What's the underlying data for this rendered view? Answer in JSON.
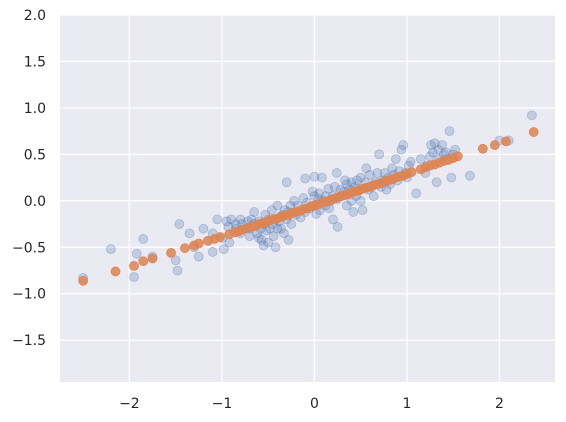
{
  "chart_data": {
    "type": "scatter",
    "title": "",
    "xlabel": "",
    "ylabel": "",
    "xlim": [
      -2.75,
      2.6
    ],
    "ylim": [
      -1.95,
      2.0
    ],
    "grid": true,
    "x_ticks": [
      -2,
      -1,
      0,
      1,
      2
    ],
    "x_tick_labels": [
      "−2",
      "−1",
      "0",
      "1",
      "2"
    ],
    "y_ticks": [
      -1.5,
      -1.0,
      -0.5,
      0.0,
      0.5,
      1.0,
      1.5,
      2.0
    ],
    "y_tick_labels": [
      "−1.5",
      "−1.0",
      "−0.5",
      "0.0",
      "0.5",
      "1.0",
      "1.5",
      "2.0"
    ],
    "colors": {
      "background": "#eaeaf2",
      "grid": "#ffffff",
      "series1": "#4c72b0",
      "series2": "#dd8452"
    },
    "series": [
      {
        "color": "#4c72b0",
        "alpha": 0.25,
        "points": [
          [
            -2.5,
            -0.83
          ],
          [
            -2.2,
            -0.52
          ],
          [
            -1.95,
            -0.82
          ],
          [
            -1.92,
            -0.57
          ],
          [
            -1.85,
            -0.41
          ],
          [
            -1.75,
            -0.6
          ],
          [
            -1.5,
            -0.64
          ],
          [
            -1.48,
            -0.75
          ],
          [
            -1.46,
            -0.25
          ],
          [
            -1.35,
            -0.35
          ],
          [
            -1.3,
            -0.5
          ],
          [
            -1.25,
            -0.6
          ],
          [
            -1.2,
            -0.3
          ],
          [
            -1.1,
            -0.35
          ],
          [
            -1.1,
            -0.55
          ],
          [
            -1.05,
            -0.2
          ],
          [
            -1.0,
            -0.4
          ],
          [
            -0.98,
            -0.52
          ],
          [
            -0.95,
            -0.22
          ],
          [
            -0.93,
            -0.28
          ],
          [
            -0.92,
            -0.45
          ],
          [
            -0.9,
            -0.2
          ],
          [
            -0.85,
            -0.25
          ],
          [
            -0.85,
            -0.3
          ],
          [
            -0.8,
            -0.2
          ],
          [
            -0.8,
            -0.35
          ],
          [
            -0.78,
            -0.25
          ],
          [
            -0.75,
            -0.3
          ],
          [
            -0.72,
            -0.22
          ],
          [
            -0.7,
            -0.3
          ],
          [
            -0.7,
            -0.38
          ],
          [
            -0.68,
            -0.2
          ],
          [
            -0.66,
            -0.25
          ],
          [
            -0.65,
            -0.12
          ],
          [
            -0.62,
            -0.35
          ],
          [
            -0.6,
            -0.22
          ],
          [
            -0.6,
            -0.4
          ],
          [
            -0.58,
            -0.3
          ],
          [
            -0.57,
            -0.42
          ],
          [
            -0.55,
            -0.25
          ],
          [
            -0.55,
            -0.48
          ],
          [
            -0.53,
            -0.15
          ],
          [
            -0.52,
            -0.32
          ],
          [
            -0.5,
            -0.45
          ],
          [
            -0.5,
            -0.2
          ],
          [
            -0.48,
            -0.3
          ],
          [
            -0.46,
            -0.1
          ],
          [
            -0.45,
            -0.25
          ],
          [
            -0.44,
            -0.38
          ],
          [
            -0.42,
            -0.2
          ],
          [
            -0.42,
            -0.5
          ],
          [
            -0.4,
            -0.3
          ],
          [
            -0.4,
            -0.05
          ],
          [
            -0.38,
            -0.22
          ],
          [
            -0.36,
            -0.3
          ],
          [
            -0.35,
            -0.15
          ],
          [
            -0.33,
            -0.35
          ],
          [
            -0.32,
            -0.1
          ],
          [
            -0.3,
            0.2
          ],
          [
            -0.3,
            -0.2
          ],
          [
            -0.28,
            -0.42
          ],
          [
            -0.28,
            -0.12
          ],
          [
            -0.26,
            -0.05
          ],
          [
            -0.25,
            -0.25
          ],
          [
            -0.22,
            0.0
          ],
          [
            -0.2,
            -0.15
          ],
          [
            -0.18,
            -0.05
          ],
          [
            -0.15,
            -0.18
          ],
          [
            -0.12,
            0.03
          ],
          [
            -0.1,
            -0.12
          ],
          [
            -0.1,
            0.24
          ],
          [
            -0.08,
            -0.02
          ],
          [
            -0.05,
            -0.08
          ],
          [
            -0.02,
            0.1
          ],
          [
            0.0,
            -0.05
          ],
          [
            0.0,
            0.05
          ],
          [
            0.0,
            0.26
          ],
          [
            0.02,
            -0.14
          ],
          [
            0.04,
            0.02
          ],
          [
            0.05,
            0.08
          ],
          [
            0.06,
            -0.1
          ],
          [
            0.08,
            0.25
          ],
          [
            0.1,
            0.0
          ],
          [
            0.12,
            0.05
          ],
          [
            0.12,
            -0.05
          ],
          [
            0.15,
            0.13
          ],
          [
            0.16,
            -0.08
          ],
          [
            0.18,
            0.0
          ],
          [
            0.2,
            0.05
          ],
          [
            0.2,
            -0.2
          ],
          [
            0.22,
            0.15
          ],
          [
            0.24,
            0.3
          ],
          [
            0.25,
            0.02
          ],
          [
            0.25,
            -0.28
          ],
          [
            0.28,
            0.12
          ],
          [
            0.3,
            0.05
          ],
          [
            0.32,
            0.1
          ],
          [
            0.33,
            0.22
          ],
          [
            0.35,
            -0.05
          ],
          [
            0.35,
            0.18
          ],
          [
            0.38,
            0.12
          ],
          [
            0.4,
            0.0
          ],
          [
            0.4,
            0.2
          ],
          [
            0.42,
            -0.12
          ],
          [
            0.44,
            0.15
          ],
          [
            0.45,
            0.05
          ],
          [
            0.46,
            0.22
          ],
          [
            0.48,
            0.12
          ],
          [
            0.5,
            0.0
          ],
          [
            0.5,
            0.25
          ],
          [
            0.52,
            -0.1
          ],
          [
            0.55,
            0.2
          ],
          [
            0.56,
            0.35
          ],
          [
            0.58,
            0.12
          ],
          [
            0.6,
            0.28
          ],
          [
            0.62,
            0.15
          ],
          [
            0.64,
            0.05
          ],
          [
            0.66,
            0.2
          ],
          [
            0.68,
            0.3
          ],
          [
            0.7,
            0.5
          ],
          [
            0.72,
            0.15
          ],
          [
            0.74,
            0.22
          ],
          [
            0.76,
            0.3
          ],
          [
            0.78,
            0.12
          ],
          [
            0.8,
            0.25
          ],
          [
            0.82,
            0.18
          ],
          [
            0.84,
            0.35
          ],
          [
            0.86,
            0.28
          ],
          [
            0.88,
            0.45
          ],
          [
            0.9,
            0.22
          ],
          [
            0.92,
            0.32
          ],
          [
            0.94,
            0.55
          ],
          [
            0.96,
            0.6
          ],
          [
            0.98,
            0.3
          ],
          [
            1.0,
            0.25
          ],
          [
            1.02,
            0.38
          ],
          [
            1.04,
            0.42
          ],
          [
            1.1,
            0.08
          ],
          [
            1.15,
            0.45
          ],
          [
            1.2,
            0.3
          ],
          [
            1.22,
            0.38
          ],
          [
            1.25,
            0.48
          ],
          [
            1.26,
            0.6
          ],
          [
            1.28,
            0.52
          ],
          [
            1.3,
            0.62
          ],
          [
            1.32,
            0.2
          ],
          [
            1.34,
            0.55
          ],
          [
            1.35,
            0.45
          ],
          [
            1.38,
            0.6
          ],
          [
            1.4,
            0.5
          ],
          [
            1.42,
            0.52
          ],
          [
            1.44,
            0.45
          ],
          [
            1.46,
            0.75
          ],
          [
            1.48,
            0.25
          ],
          [
            1.5,
            0.5
          ],
          [
            1.52,
            0.55
          ],
          [
            1.68,
            0.27
          ],
          [
            2.0,
            0.65
          ],
          [
            2.1,
            0.65
          ],
          [
            2.35,
            0.92
          ]
        ]
      },
      {
        "color": "#dd8452",
        "alpha": 0.85,
        "points": [
          [
            -2.5,
            -0.86
          ],
          [
            -2.15,
            -0.76
          ],
          [
            -1.95,
            -0.7
          ],
          [
            -1.85,
            -0.65
          ],
          [
            -1.75,
            -0.62
          ],
          [
            -1.55,
            -0.56
          ],
          [
            -1.4,
            -0.51
          ],
          [
            -1.3,
            -0.48
          ],
          [
            -1.25,
            -0.46
          ],
          [
            -1.15,
            -0.43
          ],
          [
            -1.08,
            -0.41
          ],
          [
            -1.02,
            -0.39
          ],
          [
            -0.92,
            -0.36
          ],
          [
            -0.86,
            -0.34
          ],
          [
            -0.82,
            -0.33
          ],
          [
            -0.78,
            -0.31
          ],
          [
            -0.72,
            -0.29
          ],
          [
            -0.68,
            -0.28
          ],
          [
            -0.64,
            -0.27
          ],
          [
            -0.6,
            -0.25
          ],
          [
            -0.56,
            -0.24
          ],
          [
            -0.52,
            -0.23
          ],
          [
            -0.48,
            -0.21
          ],
          [
            -0.44,
            -0.2
          ],
          [
            -0.4,
            -0.19
          ],
          [
            -0.36,
            -0.17
          ],
          [
            -0.32,
            -0.16
          ],
          [
            -0.28,
            -0.15
          ],
          [
            -0.24,
            -0.13
          ],
          [
            -0.2,
            -0.12
          ],
          [
            -0.16,
            -0.11
          ],
          [
            -0.12,
            -0.09
          ],
          [
            -0.08,
            -0.08
          ],
          [
            -0.04,
            -0.06
          ],
          [
            0.0,
            -0.05
          ],
          [
            0.04,
            -0.04
          ],
          [
            0.08,
            -0.02
          ],
          [
            0.12,
            -0.01
          ],
          [
            0.16,
            0.0
          ],
          [
            0.2,
            0.02
          ],
          [
            0.24,
            0.03
          ],
          [
            0.28,
            0.05
          ],
          [
            0.32,
            0.06
          ],
          [
            0.36,
            0.07
          ],
          [
            0.4,
            0.09
          ],
          [
            0.44,
            0.1
          ],
          [
            0.48,
            0.11
          ],
          [
            0.52,
            0.13
          ],
          [
            0.56,
            0.14
          ],
          [
            0.6,
            0.15
          ],
          [
            0.64,
            0.17
          ],
          [
            0.68,
            0.18
          ],
          [
            0.72,
            0.19
          ],
          [
            0.76,
            0.21
          ],
          [
            0.8,
            0.22
          ],
          [
            0.84,
            0.23
          ],
          [
            0.88,
            0.25
          ],
          [
            0.92,
            0.26
          ],
          [
            0.96,
            0.27
          ],
          [
            1.0,
            0.29
          ],
          [
            1.05,
            0.31
          ],
          [
            1.15,
            0.34
          ],
          [
            1.2,
            0.36
          ],
          [
            1.25,
            0.38
          ],
          [
            1.3,
            0.39
          ],
          [
            1.35,
            0.41
          ],
          [
            1.4,
            0.43
          ],
          [
            1.45,
            0.44
          ],
          [
            1.5,
            0.46
          ],
          [
            1.55,
            0.48
          ],
          [
            1.82,
            0.56
          ],
          [
            1.95,
            0.6
          ],
          [
            2.07,
            0.64
          ],
          [
            2.37,
            0.74
          ]
        ]
      }
    ]
  }
}
